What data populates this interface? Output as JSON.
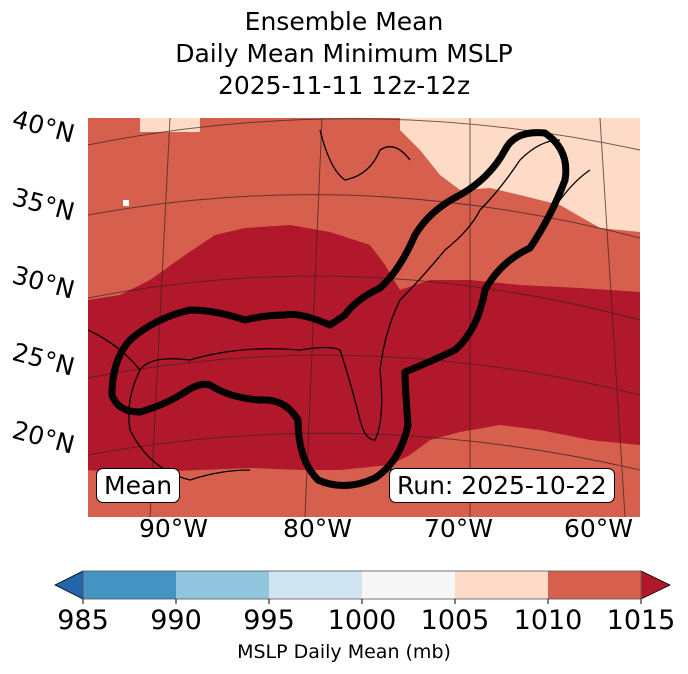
{
  "title": {
    "line1": "Ensemble Mean",
    "line2": "Daily Mean Minimum MSLP",
    "line3": "2025-11-11 12z-12z"
  },
  "lat_labels": [
    "40°N",
    "35°N",
    "30°N",
    "25°N",
    "20°N"
  ],
  "lon_labels": [
    "90°W",
    "80°W",
    "70°W",
    "60°W"
  ],
  "mean_label": "Mean",
  "run_label": "Run: 2025-10-22",
  "colorbar": {
    "label": "MSLP Daily Mean (mb)",
    "ticks": [
      "985",
      "990",
      "995",
      "1000",
      "1005",
      "1010",
      "1015"
    ],
    "colors": [
      "#4393c3",
      "#92c5de",
      "#d1e5f0",
      "#f7f7f7",
      "#fddbc7",
      "#d6604d"
    ],
    "under_color": "#2166ac",
    "over_color": "#b2182b"
  },
  "map_colors": {
    "bin_1005_1010": "#fddbc7",
    "bin_1010_1015": "#d6604d",
    "above_1015": "#b2182b",
    "contour": "#000000"
  }
}
